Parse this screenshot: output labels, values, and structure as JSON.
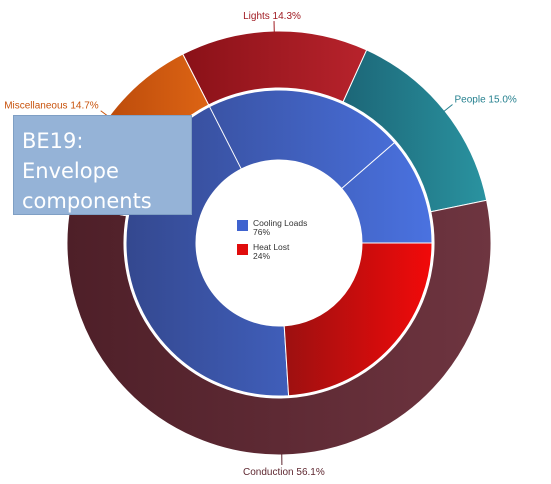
{
  "chart_data": {
    "type": "pie",
    "inner_ring": [
      {
        "name": "Cooling Loads",
        "percent_label": "76%",
        "color": "#3f63cf"
      },
      {
        "name": "Heat Lost",
        "percent_label": "24%",
        "color": "#d40f0f"
      }
    ],
    "outer_ring": [
      {
        "name": "Lights",
        "value": 14.3,
        "label": "Lights 14.3%",
        "color": "#a01b22"
      },
      {
        "name": "People",
        "value": 15.0,
        "label": "People 15.0%",
        "color": "#25808f"
      },
      {
        "name": "Conduction",
        "value": 56.1,
        "label": "Conduction 56.1%",
        "color": "#5e2730"
      },
      {
        "name": "Miscellaneous",
        "value": 14.7,
        "label": "Miscellaneous 14.7%",
        "color": "#c8530d"
      }
    ]
  },
  "callout": {
    "line1": "BE19: Envelope",
    "line2": "components"
  }
}
